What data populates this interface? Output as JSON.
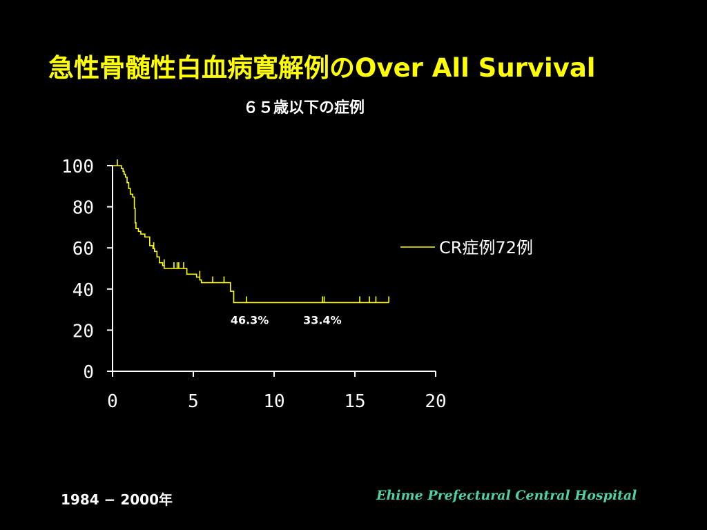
{
  "slide": {
    "title": "急性骨髄性白血病寛解例のOver All Survival",
    "subtitle": "６５歳以下の症例",
    "years": "1984 − 2000年",
    "hospital": "Ehime Prefectural Central Hospital"
  },
  "colors": {
    "background": "#000000",
    "title": "#ffff00",
    "curve": "#ffff00",
    "axis": "#ffffff",
    "hospital": "#4fd1a5"
  },
  "chart_data": {
    "type": "line",
    "title": "",
    "xlabel": "",
    "ylabel": "",
    "xlim": [
      0,
      20
    ],
    "ylim": [
      0,
      100
    ],
    "x_ticks": [
      "0",
      "5",
      "10",
      "15",
      "20"
    ],
    "y_ticks": [
      "0",
      "20",
      "40",
      "60",
      "80",
      "100"
    ],
    "grid": false,
    "legend_position": "right",
    "series": [
      {
        "name": "CR症例72例",
        "step": true,
        "points": [
          [
            0,
            100
          ],
          [
            0.5,
            100
          ],
          [
            0.55,
            98.6
          ],
          [
            0.65,
            97.2
          ],
          [
            0.72,
            95.8
          ],
          [
            0.8,
            94.4
          ],
          [
            0.9,
            91.7
          ],
          [
            1.0,
            88.9
          ],
          [
            1.1,
            86.1
          ],
          [
            1.25,
            84.7
          ],
          [
            1.35,
            79.2
          ],
          [
            1.4,
            72.2
          ],
          [
            1.45,
            69.4
          ],
          [
            1.6,
            68.0
          ],
          [
            1.75,
            66.7
          ],
          [
            2.0,
            65.3
          ],
          [
            2.3,
            61.1
          ],
          [
            2.5,
            59.7
          ],
          [
            2.6,
            58.3
          ],
          [
            2.75,
            55.6
          ],
          [
            2.9,
            52.8
          ],
          [
            3.1,
            51.4
          ],
          [
            3.2,
            50.0
          ],
          [
            4.5,
            50.0
          ],
          [
            4.6,
            47.2
          ],
          [
            5.2,
            45.8
          ],
          [
            5.4,
            44.4
          ],
          [
            5.5,
            43.1
          ],
          [
            7.0,
            43.1
          ],
          [
            7.3,
            38.9
          ],
          [
            7.5,
            33.4
          ],
          [
            17.1,
            33.4
          ]
        ],
        "censored": [
          [
            0.3,
            100
          ],
          [
            2.55,
            59.7
          ],
          [
            3.2,
            51.4
          ],
          [
            3.8,
            50.0
          ],
          [
            4.0,
            50.0
          ],
          [
            4.1,
            50.0
          ],
          [
            4.4,
            50.0
          ],
          [
            5.4,
            45.8
          ],
          [
            6.2,
            43.1
          ],
          [
            6.9,
            43.1
          ],
          [
            8.3,
            33.4
          ],
          [
            13.0,
            33.4
          ],
          [
            13.1,
            33.4
          ],
          [
            15.3,
            33.4
          ],
          [
            15.9,
            33.4
          ],
          [
            16.3,
            33.4
          ],
          [
            17.1,
            33.4
          ]
        ]
      }
    ],
    "annotations": [
      {
        "text": "46.3%",
        "x": 7.3,
        "y": 23
      },
      {
        "text": "33.4%",
        "x": 11.8,
        "y": 23
      }
    ]
  }
}
